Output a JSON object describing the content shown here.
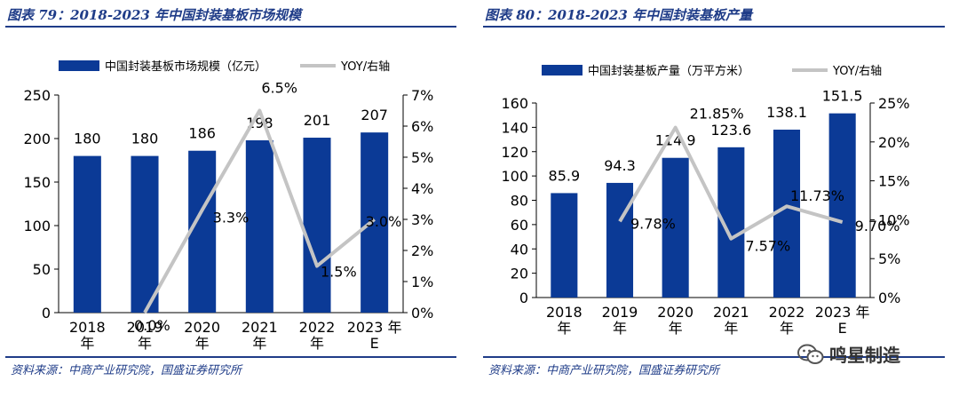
{
  "left": {
    "title": "图表 79：2018-2023 年中国封装基板市场规模",
    "source": "资料来源：中商产业研究院，国盛证券研究所",
    "chart_data": {
      "type": "bar",
      "categories": [
        [
          "2018",
          "年"
        ],
        [
          "2019",
          "年"
        ],
        [
          "2020",
          "年"
        ],
        [
          "2021",
          "年"
        ],
        [
          "2022",
          "年"
        ],
        [
          "2023 年",
          "E"
        ]
      ],
      "bar_series": {
        "name": "中国封装基板市场规模（亿元）",
        "values": [
          180,
          180,
          186,
          198,
          201,
          207
        ],
        "labels": [
          "180",
          "180",
          "186",
          "198",
          "201",
          "207"
        ],
        "color": "#0b3a96"
      },
      "line_series": {
        "name": "YOY/右轴",
        "values": [
          null,
          0.0,
          3.3,
          6.5,
          1.5,
          3.0
        ],
        "labels": [
          "",
          "0.0%",
          "3.3%",
          "6.5%",
          "1.5%",
          "3.0%"
        ],
        "color": "#c4c4c4"
      },
      "y_left": {
        "min": 0,
        "max": 250,
        "ticks": [
          "0",
          "50",
          "100",
          "150",
          "200",
          "250"
        ]
      },
      "y_right": {
        "min": 0,
        "max": 7,
        "ticks": [
          "0%",
          "1%",
          "2%",
          "3%",
          "4%",
          "5%",
          "6%",
          "7%"
        ]
      }
    }
  },
  "right": {
    "title": "图表 80：2018-2023 年中国封装基板产量",
    "source": "资料来源：中商产业研究院，国盛证券研究所",
    "chart_data": {
      "type": "bar",
      "categories": [
        [
          "2018",
          "年"
        ],
        [
          "2019",
          "年"
        ],
        [
          "2020",
          "年"
        ],
        [
          "2021",
          "年"
        ],
        [
          "2022",
          "年"
        ],
        [
          "2023 年",
          "E"
        ]
      ],
      "bar_series": {
        "name": "中国封装基板产量（万平方米）",
        "values": [
          85.9,
          94.3,
          114.9,
          123.6,
          138.1,
          151.5
        ],
        "labels": [
          "85.9",
          "94.3",
          "114.9",
          "123.6",
          "138.1",
          "151.5"
        ],
        "color": "#0b3a96"
      },
      "line_series": {
        "name": "YOY/右轴",
        "values": [
          null,
          9.78,
          21.85,
          7.57,
          11.73,
          9.7
        ],
        "labels": [
          "",
          "9.78%",
          "21.85%",
          "7.57%",
          "11.73%",
          "9.70%"
        ],
        "color": "#c4c4c4"
      },
      "y_left": {
        "min": 0,
        "max": 160,
        "ticks": [
          "0",
          "20",
          "40",
          "60",
          "80",
          "100",
          "120",
          "140",
          "160"
        ]
      },
      "y_right": {
        "min": 0,
        "max": 25,
        "ticks": [
          "0%",
          "5%",
          "10%",
          "15%",
          "20%",
          "25%"
        ]
      }
    }
  },
  "watermark": {
    "text": "鸣星制造",
    "icon": "wechat-icon"
  }
}
